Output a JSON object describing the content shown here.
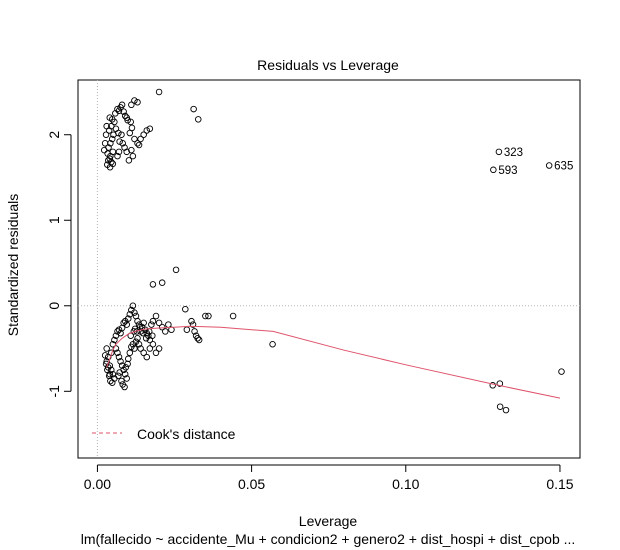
{
  "chart_data": {
    "type": "scatter",
    "title": "Residuals vs Leverage",
    "xlabel": "Leverage",
    "ylabel": "Standardized residuals",
    "subtitle": "lm(fallecido ~ accidente_Mu + condicion2 + genero2 + dist_hospi + dist_cpob ...",
    "xlim": [
      -0.0063,
      0.1565
    ],
    "ylim": [
      -1.78,
      2.64
    ],
    "x_ticks": [
      "0.00",
      "0.05",
      "0.10",
      "0.15"
    ],
    "y_ticks": [
      "-1",
      "0",
      "1",
      "2"
    ],
    "reference_lines": {
      "horizontal_y": 0,
      "vertical_x": 0,
      "style": "dotted gray"
    },
    "legend": {
      "position": "bottom-left",
      "entries": [
        {
          "label": "Cook's distance",
          "style": "dashed",
          "color": "#DF536B"
        }
      ]
    },
    "smoother_color": "#DF536B",
    "smoother": {
      "x": [
        0.003,
        0.004,
        0.005,
        0.006,
        0.008,
        0.01,
        0.013,
        0.016,
        0.02,
        0.025,
        0.03,
        0.04,
        0.05,
        0.057,
        0.08,
        0.1,
        0.13,
        0.15
      ],
      "y": [
        -0.72,
        -0.62,
        -0.52,
        -0.45,
        -0.38,
        -0.33,
        -0.29,
        -0.27,
        -0.26,
        -0.25,
        -0.24,
        -0.25,
        -0.28,
        -0.3,
        -0.52,
        -0.69,
        -0.93,
        -1.08
      ]
    },
    "labeled_points": [
      {
        "label": "323",
        "x": 0.1302,
        "y": 1.8
      },
      {
        "label": "593",
        "x": 0.1284,
        "y": 1.59
      },
      {
        "label": "635",
        "x": 0.1465,
        "y": 1.64
      }
    ],
    "points": [
      [
        0.0032,
        1.65
      ],
      [
        0.0035,
        1.7
      ],
      [
        0.004,
        1.72
      ],
      [
        0.0045,
        1.68
      ],
      [
        0.0033,
        1.78
      ],
      [
        0.0042,
        1.75
      ],
      [
        0.005,
        1.8
      ],
      [
        0.0036,
        1.85
      ],
      [
        0.0042,
        1.9
      ],
      [
        0.0048,
        1.95
      ],
      [
        0.0052,
        2.0
      ],
      [
        0.0038,
        2.05
      ],
      [
        0.0045,
        2.1
      ],
      [
        0.0055,
        2.15
      ],
      [
        0.004,
        2.2
      ],
      [
        0.0048,
        2.18
      ],
      [
        0.0058,
        2.25
      ],
      [
        0.0041,
        1.62
      ],
      [
        0.005,
        1.66
      ],
      [
        0.0065,
        2.3
      ],
      [
        0.007,
        2.28
      ],
      [
        0.0075,
        2.32
      ],
      [
        0.008,
        2.35
      ],
      [
        0.0085,
        2.27
      ],
      [
        0.009,
        2.22
      ],
      [
        0.0095,
        2.2
      ],
      [
        0.012,
        2.4
      ],
      [
        0.011,
        2.35
      ],
      [
        0.013,
        2.38
      ],
      [
        0.0078,
        2.0
      ],
      [
        0.0082,
        1.9
      ],
      [
        0.0088,
        1.85
      ],
      [
        0.0095,
        1.8
      ],
      [
        0.0102,
        1.7
      ],
      [
        0.011,
        1.82
      ],
      [
        0.0115,
        1.75
      ],
      [
        0.012,
        1.95
      ],
      [
        0.013,
        1.9
      ],
      [
        0.0135,
        1.88
      ],
      [
        0.014,
        1.95
      ],
      [
        0.015,
        2.0
      ],
      [
        0.016,
        2.05
      ],
      [
        0.017,
        2.07
      ],
      [
        0.0065,
        1.75
      ],
      [
        0.007,
        1.8
      ],
      [
        0.0072,
        1.92
      ],
      [
        0.0068,
        2.02
      ],
      [
        0.006,
        2.07
      ],
      [
        0.0105,
        2.02
      ],
      [
        0.0112,
        2.08
      ],
      [
        0.0108,
        2.15
      ],
      [
        0.0098,
        2.17
      ],
      [
        0.0022,
        1.82
      ],
      [
        0.0025,
        1.9
      ],
      [
        0.0028,
        2.0
      ],
      [
        0.003,
        2.1
      ],
      [
        0.02,
        2.5
      ],
      [
        0.0312,
        2.3
      ],
      [
        0.0327,
        2.18
      ],
      [
        0.003,
        -0.5
      ],
      [
        0.0035,
        -0.6
      ],
      [
        0.004,
        -0.7
      ],
      [
        0.0045,
        -0.75
      ],
      [
        0.005,
        -0.8
      ],
      [
        0.0055,
        -0.85
      ],
      [
        0.003,
        -0.65
      ],
      [
        0.0035,
        -0.72
      ],
      [
        0.004,
        -0.8
      ],
      [
        0.0045,
        -0.55
      ],
      [
        0.005,
        -0.45
      ],
      [
        0.0055,
        -0.4
      ],
      [
        0.006,
        -0.35
      ],
      [
        0.0065,
        -0.3
      ],
      [
        0.007,
        -0.28
      ],
      [
        0.0075,
        -0.32
      ],
      [
        0.008,
        -0.26
      ],
      [
        0.0085,
        -0.2
      ],
      [
        0.009,
        -0.18
      ],
      [
        0.0095,
        -0.22
      ],
      [
        0.01,
        -0.15
      ],
      [
        0.0105,
        -0.1
      ],
      [
        0.011,
        -0.05
      ],
      [
        0.0115,
        0.0
      ],
      [
        0.012,
        -0.08
      ],
      [
        0.0125,
        -0.12
      ],
      [
        0.013,
        -0.18
      ],
      [
        0.0135,
        -0.22
      ],
      [
        0.014,
        -0.3
      ],
      [
        0.0145,
        -0.25
      ],
      [
        0.015,
        -0.2
      ],
      [
        0.0155,
        -0.28
      ],
      [
        0.016,
        -0.32
      ],
      [
        0.0165,
        -0.35
      ],
      [
        0.017,
        -0.4
      ],
      [
        0.0175,
        -0.22
      ],
      [
        0.018,
        -0.18
      ],
      [
        0.019,
        -0.12
      ],
      [
        0.02,
        -0.2
      ],
      [
        0.021,
        -0.25
      ],
      [
        0.022,
        -0.3
      ],
      [
        0.023,
        -0.22
      ],
      [
        0.024,
        -0.28
      ],
      [
        0.006,
        -0.5
      ],
      [
        0.0065,
        -0.55
      ],
      [
        0.007,
        -0.6
      ],
      [
        0.0075,
        -0.65
      ],
      [
        0.008,
        -0.7
      ],
      [
        0.0085,
        -0.75
      ],
      [
        0.009,
        -0.8
      ],
      [
        0.0095,
        -0.85
      ],
      [
        0.01,
        -0.62
      ],
      [
        0.0105,
        -0.55
      ],
      [
        0.011,
        -0.48
      ],
      [
        0.0115,
        -0.45
      ],
      [
        0.012,
        -0.5
      ],
      [
        0.0125,
        -0.42
      ],
      [
        0.013,
        -0.38
      ],
      [
        0.0135,
        -0.45
      ],
      [
        0.014,
        -0.5
      ],
      [
        0.015,
        -0.55
      ],
      [
        0.016,
        -0.6
      ],
      [
        0.017,
        -0.5
      ],
      [
        0.018,
        -0.45
      ],
      [
        0.019,
        -0.55
      ],
      [
        0.02,
        -0.5
      ],
      [
        0.0025,
        -0.58
      ],
      [
        0.0028,
        -0.68
      ],
      [
        0.0032,
        -0.75
      ],
      [
        0.0038,
        -0.82
      ],
      [
        0.0042,
        -0.88
      ],
      [
        0.0048,
        -0.9
      ],
      [
        0.0068,
        -0.82
      ],
      [
        0.0072,
        -0.78
      ],
      [
        0.0078,
        -0.88
      ],
      [
        0.0082,
        -0.92
      ],
      [
        0.0088,
        -0.95
      ],
      [
        0.0092,
        -0.72
      ],
      [
        0.0098,
        -0.68
      ],
      [
        0.0108,
        -0.35
      ],
      [
        0.0118,
        -0.3
      ],
      [
        0.0122,
        -0.27
      ],
      [
        0.0128,
        -0.3
      ],
      [
        0.0138,
        -0.25
      ],
      [
        0.0148,
        -0.32
      ],
      [
        0.0158,
        -0.38
      ],
      [
        0.0168,
        -0.3
      ],
      [
        0.0178,
        -0.35
      ],
      [
        0.018,
        0.25
      ],
      [
        0.021,
        0.27
      ],
      [
        0.0255,
        0.42
      ],
      [
        0.0285,
        -0.04
      ],
      [
        0.029,
        -0.28
      ],
      [
        0.0305,
        -0.18
      ],
      [
        0.031,
        -0.22
      ],
      [
        0.0315,
        -0.3
      ],
      [
        0.032,
        -0.35
      ],
      [
        0.0325,
        -0.38
      ],
      [
        0.033,
        -0.4
      ],
      [
        0.035,
        -0.12
      ],
      [
        0.036,
        -0.12
      ],
      [
        0.044,
        -0.12
      ],
      [
        0.0568,
        -0.45
      ],
      [
        0.1282,
        -0.93
      ],
      [
        0.1305,
        -0.91
      ],
      [
        0.1306,
        -1.18
      ],
      [
        0.1325,
        -1.22
      ],
      [
        0.1505,
        -0.77
      ]
    ]
  }
}
